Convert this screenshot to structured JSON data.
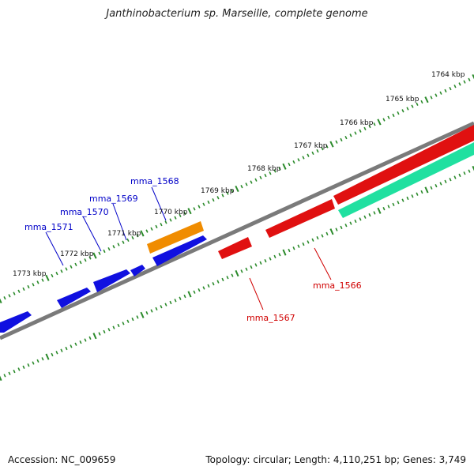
{
  "title": "Janthinobacterium sp. Marseille, complete genome",
  "footer": {
    "accession": "Accession: NC_009659",
    "summary": "Topology: circular; Length: 4,110,251 bp; Genes: 3,749"
  },
  "ticks": [
    "1764 kbp",
    "1765 kbp",
    "1766 kbp",
    "1767 kbp",
    "1768 kbp",
    "1769 kbp",
    "1770 kbp",
    "1771 kbp",
    "1772 kbp",
    "1773 kbp"
  ],
  "colors": {
    "backbone": "#7a7a7a",
    "tick": "#2a8a2a",
    "forward_gene": "#1010e0",
    "reverse_gene": "#e01010",
    "orange_gene": "#f08c00",
    "green_gene": "#20e0a0",
    "forward_label": "#0000c8",
    "reverse_label": "#d00000"
  },
  "gene_labels": {
    "forward": [
      "mma_1568",
      "mma_1569",
      "mma_1570",
      "mma_1571"
    ],
    "reverse": [
      "mma_1566",
      "mma_1567"
    ]
  }
}
